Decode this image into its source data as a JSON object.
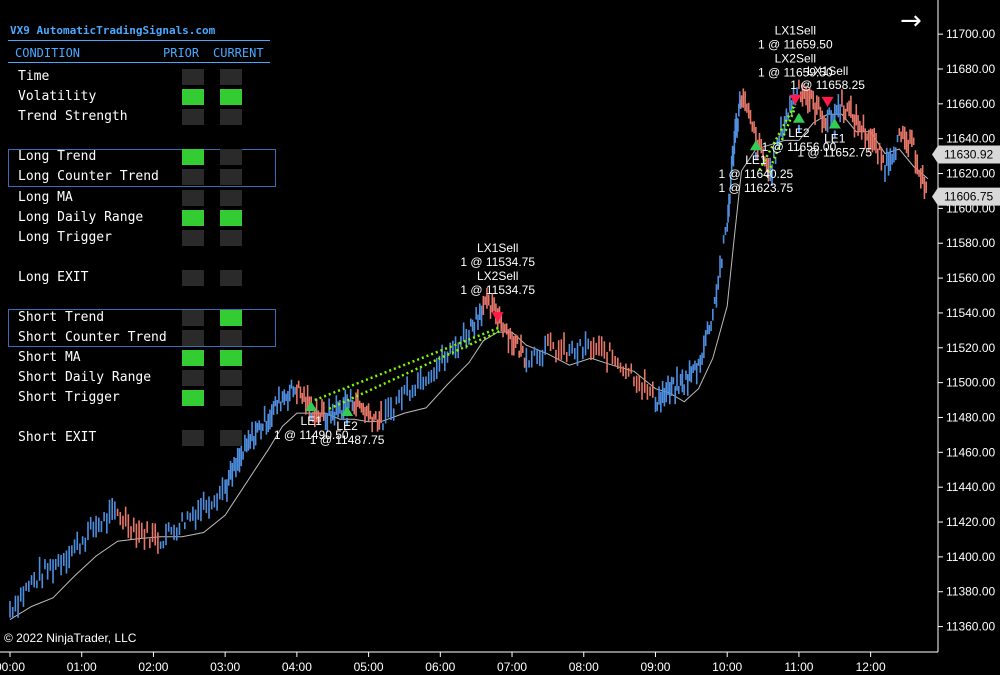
{
  "panel": {
    "title": "VX9 AutomaticTradingSignals.com",
    "col_condition": "CONDITION",
    "col_prior": "PRIOR",
    "col_current": "CURRENT",
    "rows": [
      {
        "label": "Time",
        "prior": "off",
        "current": "off"
      },
      {
        "label": "Volatility",
        "prior": "on",
        "current": "on"
      },
      {
        "label": "Trend Strength",
        "prior": "off",
        "current": "off"
      },
      {
        "label": "Long Trend",
        "prior": "on",
        "current": "off"
      },
      {
        "label": "Long Counter Trend",
        "prior": "off",
        "current": "off"
      },
      {
        "label": "Long MA",
        "prior": "off",
        "current": "off"
      },
      {
        "label": "Long Daily Range",
        "prior": "on",
        "current": "on"
      },
      {
        "label": "Long Trigger",
        "prior": "off",
        "current": "off"
      },
      {
        "label": "Long EXIT",
        "prior": "off",
        "current": "off"
      },
      {
        "label": "Short Trend",
        "prior": "off",
        "current": "on"
      },
      {
        "label": "Short Counter Trend",
        "prior": "off",
        "current": "off"
      },
      {
        "label": "Short MA",
        "prior": "on",
        "current": "on"
      },
      {
        "label": "Short Daily Range",
        "prior": "off",
        "current": "off"
      },
      {
        "label": "Short Trigger",
        "prior": "on",
        "current": "off"
      },
      {
        "label": "Short EXIT",
        "prior": "off",
        "current": "off"
      }
    ],
    "on_color": "#33cc33",
    "off_color": "#2a2a2a"
  },
  "copyright": "© 2022 NinjaTrader, LLC",
  "chart_data": {
    "type": "line",
    "ylim": [
      11350,
      11715
    ],
    "xlim": [
      0,
      12.8
    ],
    "x_ticks": [
      "00:00",
      "01:00",
      "02:00",
      "03:00",
      "04:00",
      "05:00",
      "06:00",
      "07:00",
      "08:00",
      "09:00",
      "10:00",
      "11:00",
      "12:00"
    ],
    "y_ticks": [
      11360,
      11380,
      11400,
      11420,
      11440,
      11460,
      11480,
      11500,
      11520,
      11540,
      11560,
      11580,
      11600,
      11620,
      11640,
      11660,
      11680,
      11700
    ],
    "price_labels": [
      {
        "value": 11630.92,
        "text": "11630.92"
      },
      {
        "value": 11606.75,
        "text": "11606.75"
      }
    ],
    "price_path": [
      [
        0.0,
        11370
      ],
      [
        0.3,
        11385
      ],
      [
        0.6,
        11395
      ],
      [
        0.9,
        11405
      ],
      [
        1.2,
        11418
      ],
      [
        1.5,
        11425
      ],
      [
        1.8,
        11415
      ],
      [
        2.1,
        11410
      ],
      [
        2.4,
        11420
      ],
      [
        2.7,
        11430
      ],
      [
        3.0,
        11440
      ],
      [
        3.2,
        11455
      ],
      [
        3.4,
        11470
      ],
      [
        3.6,
        11480
      ],
      [
        3.8,
        11492
      ],
      [
        4.0,
        11497
      ],
      [
        4.2,
        11485
      ],
      [
        4.4,
        11480
      ],
      [
        4.6,
        11485
      ],
      [
        4.8,
        11490
      ],
      [
        5.0,
        11482
      ],
      [
        5.2,
        11478
      ],
      [
        5.5,
        11495
      ],
      [
        5.8,
        11505
      ],
      [
        6.1,
        11515
      ],
      [
        6.4,
        11530
      ],
      [
        6.6,
        11545
      ],
      [
        6.8,
        11540
      ],
      [
        7.0,
        11525
      ],
      [
        7.2,
        11515
      ],
      [
        7.5,
        11520
      ],
      [
        7.8,
        11517
      ],
      [
        8.1,
        11520
      ],
      [
        8.4,
        11515
      ],
      [
        8.7,
        11505
      ],
      [
        9.0,
        11490
      ],
      [
        9.2,
        11495
      ],
      [
        9.4,
        11500
      ],
      [
        9.6,
        11510
      ],
      [
        9.8,
        11540
      ],
      [
        10.0,
        11590
      ],
      [
        10.1,
        11640
      ],
      [
        10.2,
        11665
      ],
      [
        10.4,
        11640
      ],
      [
        10.6,
        11620
      ],
      [
        10.8,
        11650
      ],
      [
        11.0,
        11670
      ],
      [
        11.2,
        11660
      ],
      [
        11.4,
        11650
      ],
      [
        11.6,
        11660
      ],
      [
        11.8,
        11650
      ],
      [
        12.0,
        11640
      ],
      [
        12.2,
        11625
      ],
      [
        12.4,
        11640
      ],
      [
        12.6,
        11635
      ],
      [
        12.8,
        11606
      ]
    ],
    "trendlines": [
      {
        "x1": 4.25,
        "y1": 11490,
        "x2": 6.85,
        "y2": 11532
      },
      {
        "x1": 4.45,
        "y1": 11485,
        "x2": 6.85,
        "y2": 11530
      },
      {
        "x1": 10.45,
        "y1": 11622,
        "x2": 10.95,
        "y2": 11660
      },
      {
        "x1": 10.55,
        "y1": 11618,
        "x2": 10.95,
        "y2": 11658
      }
    ],
    "annotations": [
      {
        "x": 6.8,
        "y": 11534.75,
        "lines": [
          "LX1Sell",
          "1 @ 11534.75",
          "LX2Sell",
          "1 @ 11534.75"
        ],
        "dy": -70
      },
      {
        "x": 10.95,
        "y": 11659.5,
        "lines": [
          "LX1Sell",
          "1 @ 11659.50",
          "LX2Sell",
          "1 @ 11659.50"
        ],
        "dy": -70
      },
      {
        "x": 11.4,
        "y": 11658.25,
        "lines": [
          "LX1Sell",
          "1 @ 11658.25"
        ],
        "dy": -32
      },
      {
        "x": 4.2,
        "y": 11490.5,
        "lines": [
          "LE1",
          "1 @ 11490.50"
        ],
        "dy": 26
      },
      {
        "x": 4.7,
        "y": 11487.75,
        "lines": [
          "LE2",
          "1 @ 11487.75"
        ],
        "dy": 26
      },
      {
        "x": 10.4,
        "y": 11640.25,
        "lines": [
          "LE1",
          "1 @ 11640.25",
          "1 @ 11623.75"
        ],
        "dy": 26
      },
      {
        "x": 11.0,
        "y": 11656.0,
        "lines": [
          "LE2",
          "1 @ 11656.00"
        ],
        "dy": 26
      },
      {
        "x": 11.5,
        "y": 11652.75,
        "lines": [
          "LE1",
          "1 @ 11652.75"
        ],
        "dy": 26
      }
    ]
  }
}
